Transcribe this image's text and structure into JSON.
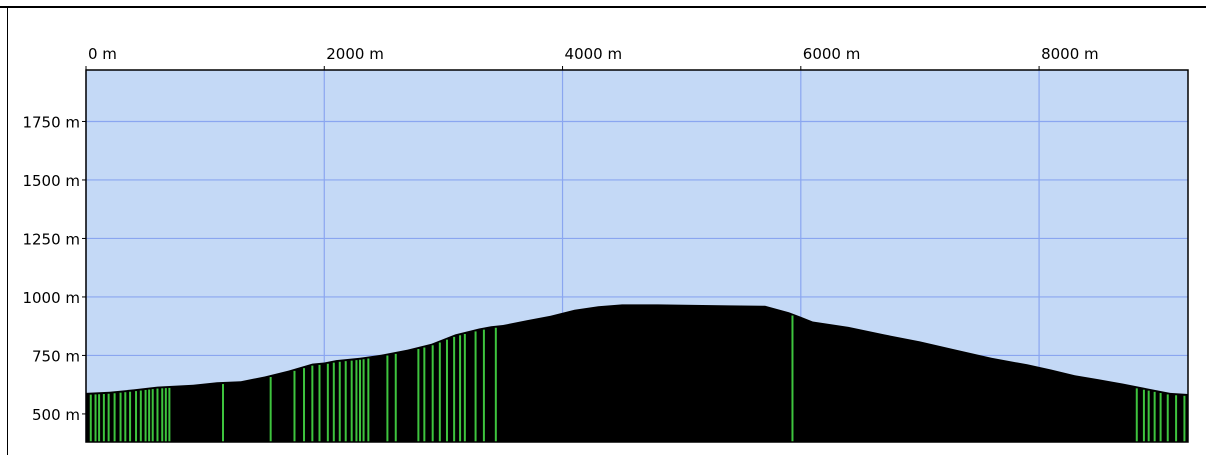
{
  "chart_data": {
    "type": "area",
    "title": "",
    "xlabel": "",
    "ylabel": "",
    "x_unit": "m",
    "y_unit": "m",
    "xlim": [
      0,
      9250
    ],
    "ylim": [
      380,
      1970
    ],
    "x_ticks": [
      {
        "value": 0,
        "label": "0 m"
      },
      {
        "value": 2000,
        "label": "2000 m"
      },
      {
        "value": 4000,
        "label": "4000 m"
      },
      {
        "value": 6000,
        "label": "6000 m"
      },
      {
        "value": 8000,
        "label": "8000 m"
      }
    ],
    "y_ticks": [
      {
        "value": 500,
        "label": "500 m"
      },
      {
        "value": 750,
        "label": "750 m"
      },
      {
        "value": 1000,
        "label": "1000 m"
      },
      {
        "value": 1250,
        "label": "1250 m"
      },
      {
        "value": 1500,
        "label": "1500 m"
      },
      {
        "value": 1750,
        "label": "1750 m"
      }
    ],
    "grid": true,
    "colors": {
      "plot_background": "#c4d9f6",
      "grid": "#8aa6f0",
      "fill": "#000000",
      "markers": "#3ec43e",
      "axis": "#000000"
    },
    "series": [
      {
        "x": [
          0,
          200,
          400,
          600,
          900,
          1100,
          1300,
          1500,
          1700,
          1900,
          2000,
          2100,
          2300,
          2500,
          2700,
          2900,
          3100,
          3300,
          3400,
          3500,
          3700,
          3900,
          4100,
          4300,
          4500,
          4800,
          5100,
          5400,
          5700,
          5900,
          6000,
          6100,
          6400,
          6700,
          7000,
          7300,
          7600,
          7900,
          8100,
          8300,
          8500,
          8700,
          8900,
          9100,
          9250
        ],
        "y": [
          590,
          595,
          605,
          617,
          625,
          635,
          640,
          660,
          685,
          715,
          720,
          730,
          740,
          755,
          775,
          800,
          840,
          865,
          875,
          880,
          900,
          920,
          945,
          960,
          968,
          968,
          966,
          964,
          962,
          935,
          915,
          895,
          872,
          840,
          810,
          775,
          740,
          712,
          690,
          665,
          648,
          630,
          610,
          590,
          585
        ]
      }
    ],
    "marker_positions": [
      40,
      80,
      110,
      150,
      190,
      240,
      290,
      330,
      370,
      420,
      460,
      500,
      530,
      560,
      600,
      640,
      670,
      700,
      1150,
      1550,
      1750,
      1830,
      1900,
      1960,
      2030,
      2080,
      2130,
      2180,
      2230,
      2270,
      2300,
      2330,
      2370,
      2530,
      2600,
      2790,
      2840,
      2910,
      2970,
      3030,
      3090,
      3140,
      3180,
      3270,
      3340,
      3440,
      5930,
      8820,
      8880,
      8920,
      8970,
      9020,
      9080,
      9150,
      9220
    ]
  }
}
